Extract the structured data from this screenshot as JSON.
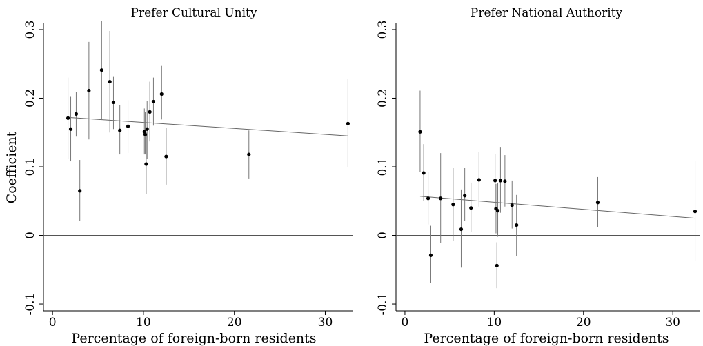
{
  "chart_data": [
    {
      "type": "scatter",
      "title": "Prefer Cultural Unity",
      "xlabel": "Percentage of foreign-born residents",
      "ylabel": "Coefficient",
      "xlim": [
        -1,
        33
      ],
      "ylim": [
        -0.11,
        0.31
      ],
      "xticks": [
        0,
        10,
        20,
        30
      ],
      "yticks": [
        -0.1,
        0,
        0.1,
        0.2,
        0.3
      ],
      "ytick_labels": [
        "-0.1",
        "0",
        "0.1",
        "0.2",
        "0.3"
      ],
      "reference_line_y": 0,
      "fit_line": {
        "x": [
          1.7,
          32.5
        ],
        "y": [
          0.172,
          0.145
        ]
      },
      "points": [
        {
          "x": 1.7,
          "y": 0.171,
          "lo": 0.112,
          "hi": 0.23
        },
        {
          "x": 2.0,
          "y": 0.155,
          "lo": 0.108,
          "hi": 0.202
        },
        {
          "x": 2.6,
          "y": 0.177,
          "lo": 0.144,
          "hi": 0.209
        },
        {
          "x": 3.0,
          "y": 0.065,
          "lo": 0.021,
          "hi": 0.11
        },
        {
          "x": 4.0,
          "y": 0.211,
          "lo": 0.14,
          "hi": 0.282
        },
        {
          "x": 5.4,
          "y": 0.241,
          "lo": 0.17,
          "hi": 0.312
        },
        {
          "x": 6.3,
          "y": 0.224,
          "lo": 0.15,
          "hi": 0.298
        },
        {
          "x": 6.7,
          "y": 0.194,
          "lo": 0.155,
          "hi": 0.232
        },
        {
          "x": 7.4,
          "y": 0.153,
          "lo": 0.118,
          "hi": 0.19
        },
        {
          "x": 8.3,
          "y": 0.159,
          "lo": 0.12,
          "hi": 0.197
        },
        {
          "x": 10.1,
          "y": 0.151,
          "lo": 0.118,
          "hi": 0.185
        },
        {
          "x": 10.2,
          "y": 0.147,
          "lo": 0.118,
          "hi": 0.18
        },
        {
          "x": 10.3,
          "y": 0.104,
          "lo": 0.06,
          "hi": 0.15
        },
        {
          "x": 10.4,
          "y": 0.155,
          "lo": 0.112,
          "hi": 0.196
        },
        {
          "x": 10.7,
          "y": 0.18,
          "lo": 0.137,
          "hi": 0.224
        },
        {
          "x": 11.1,
          "y": 0.195,
          "lo": 0.16,
          "hi": 0.23
        },
        {
          "x": 12.0,
          "y": 0.206,
          "lo": 0.169,
          "hi": 0.247
        },
        {
          "x": 12.5,
          "y": 0.115,
          "lo": 0.074,
          "hi": 0.157
        },
        {
          "x": 21.6,
          "y": 0.118,
          "lo": 0.083,
          "hi": 0.153
        },
        {
          "x": 32.5,
          "y": 0.163,
          "lo": 0.099,
          "hi": 0.228
        }
      ]
    },
    {
      "type": "scatter",
      "title": "Prefer National Authority",
      "xlabel": "Percentage of foreign-born residents",
      "ylabel": "",
      "xlim": [
        -1,
        33
      ],
      "ylim": [
        -0.11,
        0.31
      ],
      "xticks": [
        0,
        10,
        20,
        30
      ],
      "yticks": [
        -0.1,
        0,
        0.1,
        0.2,
        0.3
      ],
      "ytick_labels": [
        "-0.1",
        "0",
        "0.1",
        "0.2",
        "0.3"
      ],
      "reference_line_y": 0,
      "fit_line": {
        "x": [
          1.7,
          32.5
        ],
        "y": [
          0.057,
          0.025
        ]
      },
      "points": [
        {
          "x": 1.7,
          "y": 0.151,
          "lo": 0.092,
          "hi": 0.211
        },
        {
          "x": 2.1,
          "y": 0.091,
          "lo": 0.05,
          "hi": 0.133
        },
        {
          "x": 2.6,
          "y": 0.054,
          "lo": 0.016,
          "hi": 0.092
        },
        {
          "x": 2.9,
          "y": -0.029,
          "lo": -0.069,
          "hi": 0.014
        },
        {
          "x": 4.0,
          "y": 0.054,
          "lo": -0.011,
          "hi": 0.12
        },
        {
          "x": 5.4,
          "y": 0.045,
          "lo": -0.008,
          "hi": 0.098
        },
        {
          "x": 6.3,
          "y": 0.009,
          "lo": -0.047,
          "hi": 0.067
        },
        {
          "x": 6.7,
          "y": 0.058,
          "lo": 0.021,
          "hi": 0.098
        },
        {
          "x": 7.4,
          "y": 0.04,
          "lo": 0.005,
          "hi": 0.077
        },
        {
          "x": 8.3,
          "y": 0.081,
          "lo": 0.042,
          "hi": 0.122
        },
        {
          "x": 10.1,
          "y": 0.08,
          "lo": 0.041,
          "hi": 0.119
        },
        {
          "x": 10.2,
          "y": 0.039,
          "lo": 0.003,
          "hi": 0.075
        },
        {
          "x": 10.3,
          "y": -0.044,
          "lo": -0.077,
          "hi": -0.01
        },
        {
          "x": 10.4,
          "y": 0.036,
          "lo": -0.002,
          "hi": 0.076
        },
        {
          "x": 10.7,
          "y": 0.08,
          "lo": 0.033,
          "hi": 0.128
        },
        {
          "x": 11.2,
          "y": 0.079,
          "lo": 0.042,
          "hi": 0.117
        },
        {
          "x": 12.0,
          "y": 0.044,
          "lo": 0.01,
          "hi": 0.08
        },
        {
          "x": 12.5,
          "y": 0.015,
          "lo": -0.03,
          "hi": 0.059
        },
        {
          "x": 21.6,
          "y": 0.048,
          "lo": 0.012,
          "hi": 0.085
        },
        {
          "x": 32.5,
          "y": 0.035,
          "lo": -0.037,
          "hi": 0.109
        }
      ]
    }
  ]
}
